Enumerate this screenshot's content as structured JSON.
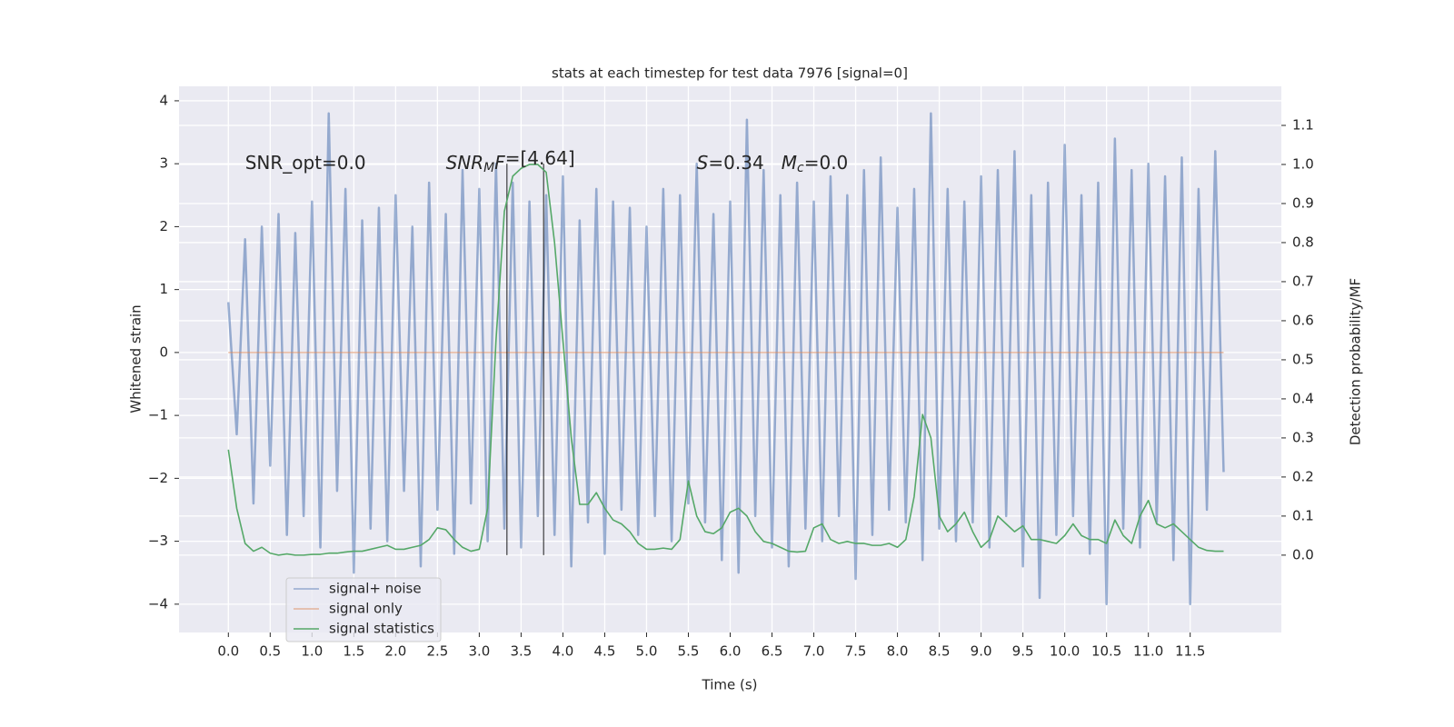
{
  "chart_data": {
    "type": "line",
    "title": "stats at each timestep for test data 7976 [signal=0]",
    "xlabel": "Time (s)",
    "ylabel": "Whitened strain",
    "y2label": "Detection probability/MF",
    "xlim": [
      -0.59,
      12.59
    ],
    "ylim": [
      -4.45,
      4.23
    ],
    "y2lim": [
      -0.198,
      1.2
    ],
    "xticks": [
      {
        "value": 0,
        "label": "0.0"
      },
      0.5,
      {
        "value": 1,
        "label": "1.0"
      },
      1.5,
      {
        "value": 2,
        "label": "2.0"
      },
      2.5,
      {
        "value": 3,
        "label": "3.0"
      },
      3.5,
      {
        "value": 4,
        "label": "4.0"
      },
      4.5,
      {
        "value": 5,
        "label": "5.0"
      },
      5.5,
      {
        "value": 6,
        "label": "6.0"
      },
      6.5,
      {
        "value": 7,
        "label": "7.0"
      },
      7.5,
      {
        "value": 8,
        "label": "8.0"
      },
      8.5,
      {
        "value": 9,
        "label": "9.0"
      },
      9.5,
      {
        "value": 10,
        "label": "10.0"
      },
      10.5,
      {
        "value": 11,
        "label": "11.0"
      },
      11.5
    ],
    "yticks": [
      {
        "value": -4,
        "label": "−4"
      },
      {
        "value": -3,
        "label": "−3"
      },
      {
        "value": -2,
        "label": "−2"
      },
      {
        "value": -1,
        "label": "−1"
      },
      0,
      1,
      2,
      3,
      4
    ],
    "y2ticks": [
      {
        "value": 0,
        "label": "0.0"
      },
      0.1,
      0.2,
      0.3,
      0.4,
      0.5,
      0.6,
      0.7,
      0.8,
      0.9,
      {
        "value": 1,
        "label": "1.0"
      },
      1.1
    ],
    "grid": true,
    "legend": "lower left",
    "x": [
      0,
      0.1,
      0.2,
      0.3,
      0.4,
      0.5,
      0.6,
      0.7,
      0.8,
      0.9,
      1,
      1.1,
      1.2,
      1.3,
      1.4,
      1.5,
      1.6,
      1.7,
      1.8,
      1.9,
      2,
      2.1,
      2.2,
      2.3,
      2.4,
      2.5,
      2.6,
      2.7,
      2.8,
      2.9,
      3,
      3.1,
      3.2,
      3.3,
      3.4,
      3.5,
      3.6,
      3.7,
      3.8,
      3.9,
      4,
      4.1,
      4.2,
      4.3,
      4.4,
      4.5,
      4.6,
      4.7,
      4.8,
      4.9,
      5,
      5.1,
      5.2,
      5.3,
      5.4,
      5.5,
      5.6,
      5.7,
      5.8,
      5.9,
      6,
      6.1,
      6.2,
      6.3,
      6.4,
      6.5,
      6.6,
      6.7,
      6.8,
      6.9,
      7,
      7.1,
      7.2,
      7.3,
      7.4,
      7.5,
      7.6,
      7.7,
      7.8,
      7.9,
      8,
      8.1,
      8.2,
      8.3,
      8.4,
      8.5,
      8.6,
      8.7,
      8.8,
      8.9,
      9,
      9.1,
      9.2,
      9.3,
      9.4,
      9.5,
      9.6,
      9.7,
      9.8,
      9.9,
      10,
      10.1,
      10.2,
      10.3,
      10.4,
      10.5,
      10.6,
      10.7,
      10.8,
      10.9,
      11,
      11.1,
      11.2,
      11.3,
      11.4,
      11.5,
      11.6,
      11.7,
      11.8,
      11.9
    ],
    "series": [
      {
        "name": "signal+ noise",
        "color": "#4c72b0",
        "values": [
          0.8,
          -1.3,
          1.8,
          -2.4,
          2.0,
          -1.8,
          2.2,
          -2.9,
          1.9,
          -2.6,
          2.4,
          -3.1,
          3.8,
          -2.2,
          2.6,
          -3.5,
          2.1,
          -2.8,
          2.3,
          -3.0,
          2.5,
          -2.2,
          2.0,
          -3.4,
          2.7,
          -2.5,
          2.2,
          -3.2,
          2.9,
          -2.4,
          2.6,
          -3.0,
          3.0,
          -2.8,
          2.7,
          -3.1,
          2.4,
          -2.6,
          2.5,
          -2.9,
          2.8,
          -3.4,
          2.1,
          -2.7,
          2.6,
          -3.2,
          2.4,
          -2.5,
          2.3,
          -2.9,
          2.0,
          -2.6,
          2.6,
          -3.0,
          2.5,
          -2.4,
          3.0,
          -2.7,
          2.2,
          -3.3,
          2.4,
          -3.5,
          3.7,
          -2.6,
          2.9,
          -3.1,
          2.5,
          -3.4,
          2.7,
          -2.8,
          2.4,
          -3.0,
          2.8,
          -2.6,
          2.5,
          -3.6,
          2.9,
          -2.9,
          3.1,
          -2.5,
          2.3,
          -2.7,
          2.6,
          -3.3,
          3.8,
          -2.8,
          2.6,
          -3.0,
          2.4,
          -2.7,
          2.8,
          -3.1,
          2.9,
          -2.6,
          3.2,
          -3.4,
          2.5,
          -3.9,
          2.7,
          -2.9,
          3.3,
          -2.6,
          2.5,
          -3.2,
          2.7,
          -4.0,
          3.4,
          -2.8,
          2.9,
          -3.1,
          3.0,
          -2.7,
          2.8,
          -3.3,
          3.1,
          -4.0,
          2.6,
          -2.5,
          3.2,
          -1.9
        ]
      },
      {
        "name": "signal only",
        "color": "#dd8452",
        "values": [
          0,
          0,
          0,
          0,
          0,
          0,
          0,
          0,
          0,
          0,
          0,
          0,
          0,
          0,
          0,
          0,
          0,
          0,
          0,
          0,
          0,
          0,
          0,
          0,
          0,
          0,
          0,
          0,
          0,
          0,
          0,
          0,
          0,
          0,
          0,
          0,
          0,
          0,
          0,
          0,
          0,
          0,
          0,
          0,
          0,
          0,
          0,
          0,
          0,
          0,
          0,
          0,
          0,
          0,
          0,
          0,
          0,
          0,
          0,
          0,
          0,
          0,
          0,
          0,
          0,
          0,
          0,
          0,
          0,
          0,
          0,
          0,
          0,
          0,
          0,
          0,
          0,
          0,
          0,
          0,
          0,
          0,
          0,
          0,
          0,
          0,
          0,
          0,
          0,
          0,
          0,
          0,
          0,
          0,
          0,
          0,
          0,
          0,
          0,
          0,
          0,
          0,
          0,
          0,
          0,
          0,
          0,
          0,
          0,
          0,
          0,
          0,
          0,
          0,
          0,
          0,
          0,
          0,
          0,
          0
        ]
      },
      {
        "name": "signal statistics",
        "color": "#55a868",
        "axis": "y2",
        "values": [
          0.27,
          0.12,
          0.03,
          0.01,
          0.02,
          0.005,
          0.0,
          0.003,
          0.0,
          0.0,
          0.002,
          0.002,
          0.005,
          0.005,
          0.008,
          0.01,
          0.01,
          0.015,
          0.02,
          0.025,
          0.015,
          0.015,
          0.02,
          0.025,
          0.04,
          0.07,
          0.065,
          0.04,
          0.02,
          0.01,
          0.015,
          0.12,
          0.55,
          0.88,
          0.97,
          0.99,
          1.0,
          1.0,
          0.98,
          0.8,
          0.55,
          0.3,
          0.13,
          0.13,
          0.16,
          0.12,
          0.09,
          0.08,
          0.06,
          0.03,
          0.015,
          0.015,
          0.018,
          0.015,
          0.04,
          0.19,
          0.1,
          0.06,
          0.055,
          0.07,
          0.11,
          0.12,
          0.1,
          0.06,
          0.035,
          0.03,
          0.02,
          0.01,
          0.008,
          0.01,
          0.07,
          0.08,
          0.04,
          0.03,
          0.035,
          0.03,
          0.03,
          0.025,
          0.025,
          0.03,
          0.02,
          0.04,
          0.15,
          0.36,
          0.3,
          0.1,
          0.06,
          0.08,
          0.11,
          0.06,
          0.02,
          0.04,
          0.1,
          0.08,
          0.06,
          0.075,
          0.04,
          0.04,
          0.035,
          0.03,
          0.05,
          0.08,
          0.05,
          0.04,
          0.04,
          0.03,
          0.09,
          0.05,
          0.03,
          0.1,
          0.14,
          0.08,
          0.07,
          0.08,
          0.06,
          0.04,
          0.02,
          0.012,
          0.01,
          0.01
        ]
      }
    ],
    "vlines": [
      {
        "x": 3.33,
        "ymin": -3.22,
        "ymax": 3.0,
        "color": "#000000"
      },
      {
        "x": 3.77,
        "ymin": -3.22,
        "ymax": 3.0,
        "color": "#000000"
      }
    ],
    "annotations": [
      {
        "x": 0.2,
        "y": 3.0,
        "parts": [
          {
            "text": "SNR_opt=0.0"
          }
        ]
      },
      {
        "x": 2.6,
        "y": 3.0,
        "parts": [
          {
            "text": "SNR",
            "italic": true
          },
          {
            "text": "M",
            "italic": true,
            "sub": true
          },
          {
            "text": "F",
            "italic": true
          },
          {
            "text": "=[4.64]"
          }
        ]
      },
      {
        "x": 5.6,
        "y": 3.0,
        "parts": [
          {
            "text": "S",
            "italic": true
          },
          {
            "text": "=0.34   "
          },
          {
            "text": "M",
            "italic": true
          },
          {
            "text": "c",
            "italic": true,
            "sub": true
          },
          {
            "text": "=0.0"
          }
        ]
      }
    ]
  }
}
